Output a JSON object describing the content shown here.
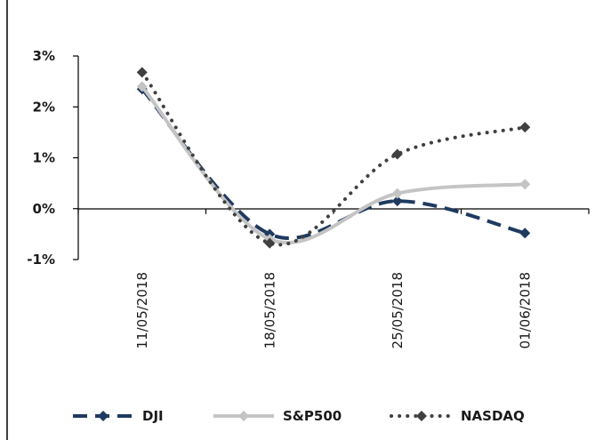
{
  "chart_data": {
    "type": "line",
    "categories": [
      "11/05/2018",
      "18/05/2018",
      "25/05/2018",
      "01/06/2018"
    ],
    "y_tick_labels": [
      "3%",
      "2%",
      "1%",
      "0%",
      "-1%"
    ],
    "y_ticks": [
      3,
      2,
      1,
      0,
      -1
    ],
    "ylim": [
      -1,
      3
    ],
    "grid": false,
    "legend_position": "bottom",
    "series": [
      {
        "name": "DJI",
        "values": [
          2.35,
          -0.5,
          0.15,
          -0.48
        ],
        "color": "#1f3a5f",
        "style": "dashed",
        "marker": "diamond"
      },
      {
        "name": "S&P500",
        "values": [
          2.4,
          -0.6,
          0.3,
          0.48
        ],
        "color": "#c4c4c4",
        "style": "solid",
        "marker": "diamond"
      },
      {
        "name": "NASDAQ",
        "values": [
          2.68,
          -0.68,
          1.07,
          1.6
        ],
        "color": "#404040",
        "style": "dotted",
        "marker": "diamond"
      }
    ]
  }
}
